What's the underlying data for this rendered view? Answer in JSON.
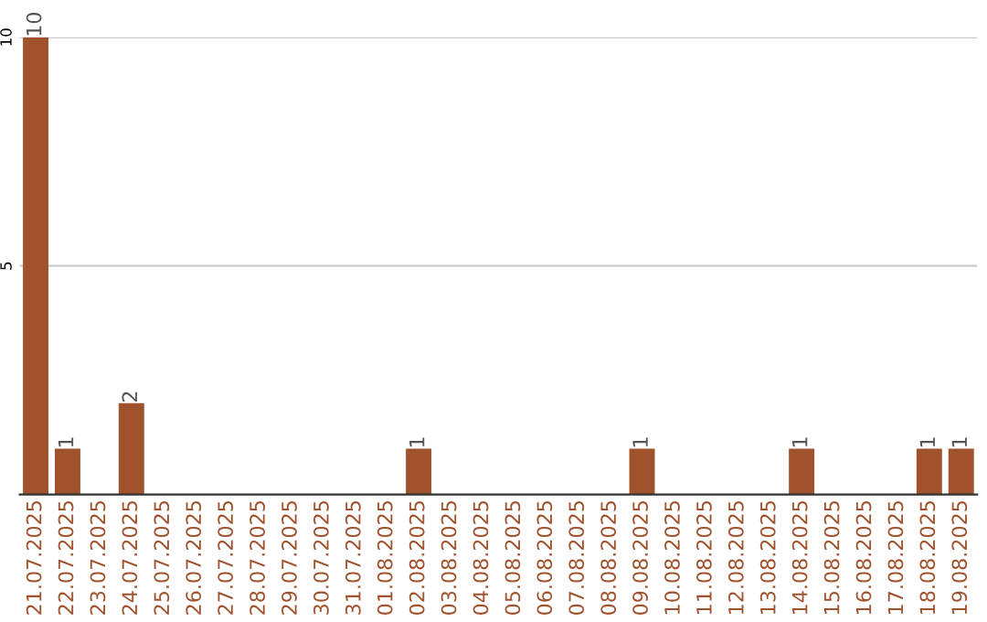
{
  "chart_data": {
    "type": "bar",
    "categories": [
      "21.07.2025",
      "22.07.2025",
      "23.07.2025",
      "24.07.2025",
      "25.07.2025",
      "26.07.2025",
      "27.07.2025",
      "28.07.2025",
      "29.07.2025",
      "30.07.2025",
      "31.07.2025",
      "01.08.2025",
      "02.08.2025",
      "03.08.2025",
      "04.08.2025",
      "05.08.2025",
      "06.08.2025",
      "07.08.2025",
      "08.08.2025",
      "09.08.2025",
      "10.08.2025",
      "11.08.2025",
      "12.08.2025",
      "13.08.2025",
      "14.08.2025",
      "15.08.2025",
      "16.08.2025",
      "17.08.2025",
      "18.08.2025",
      "19.08.2025"
    ],
    "values": [
      10,
      1,
      0,
      2,
      0,
      0,
      0,
      0,
      0,
      0,
      0,
      0,
      1,
      0,
      0,
      0,
      0,
      0,
      0,
      1,
      0,
      0,
      0,
      0,
      1,
      0,
      0,
      0,
      1,
      1
    ],
    "value_labels": [
      "10",
      "1",
      null,
      "2",
      null,
      null,
      null,
      null,
      null,
      null,
      null,
      null,
      "1",
      null,
      null,
      null,
      null,
      null,
      null,
      "1",
      null,
      null,
      null,
      null,
      "1",
      null,
      null,
      null,
      "1",
      "1"
    ],
    "color": "#a0522d",
    "ylim": [
      0,
      10
    ],
    "yticks": [
      5,
      10
    ],
    "grid": "y"
  }
}
